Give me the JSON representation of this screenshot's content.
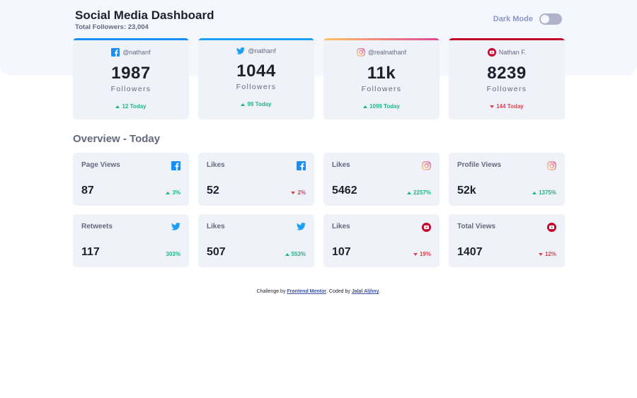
{
  "header": {
    "title": "Social Media Dashboard",
    "total_followers": "Total Followers: 23,004"
  },
  "dark_mode": {
    "label": "Dark Mode",
    "enabled": false
  },
  "overview_title": "Overview - Today",
  "colors": {
    "facebook": "#198ff5",
    "twitter": "#1ca0f2",
    "instagram_from": "#fdc468",
    "instagram_to": "#df4996",
    "youtube": "#c4032a",
    "up": "#1eb589",
    "down": "#dc414c"
  },
  "followers": [
    {
      "platform": "facebook",
      "icon": "facebook-icon",
      "handle": "@nathanf",
      "count": "1987",
      "label": "Followers",
      "change": "12 Today",
      "trend": "up"
    },
    {
      "platform": "twitter",
      "icon": "twitter-icon",
      "handle": "@nathanf",
      "count": "1044",
      "label": "Followers",
      "change": "99 Today",
      "trend": "up"
    },
    {
      "platform": "instagram",
      "icon": "instagram-icon",
      "handle": "@realnathanf",
      "count": "11k",
      "label": "Followers",
      "change": "1099 Today",
      "trend": "up"
    },
    {
      "platform": "youtube",
      "icon": "youtube-icon",
      "handle": "Nathan F.",
      "count": "8239",
      "label": "Followers",
      "change": "144 Today",
      "trend": "down"
    }
  ],
  "overview": [
    {
      "label": "Page Views",
      "icon": "facebook-icon",
      "value": "87",
      "change": "3%",
      "trend": "up"
    },
    {
      "label": "Likes",
      "icon": "facebook-icon",
      "value": "52",
      "change": "2%",
      "trend": "down"
    },
    {
      "label": "Likes",
      "icon": "instagram-icon",
      "value": "5462",
      "change": "2257%",
      "trend": "up"
    },
    {
      "label": "Profile Views",
      "icon": "instagram-icon",
      "value": "52k",
      "change": "1375%",
      "trend": "up"
    },
    {
      "label": "Retweets",
      "icon": "twitter-icon",
      "value": "117",
      "change": "303%",
      "trend": "up"
    },
    {
      "label": "Likes",
      "icon": "twitter-icon",
      "value": "507",
      "change": "553%",
      "trend": "up"
    },
    {
      "label": "Likes",
      "icon": "youtube-icon",
      "value": "107",
      "change": "19%",
      "trend": "down"
    },
    {
      "label": "Total Views",
      "icon": "youtube-icon",
      "value": "1407",
      "change": "12%",
      "trend": "down"
    }
  ],
  "footer": {
    "prefix": "Challenge by ",
    "link1": "Frontend Mentor",
    "middle": ". Coded by ",
    "link2": "Jalal Aljhny",
    "suffix": "."
  }
}
